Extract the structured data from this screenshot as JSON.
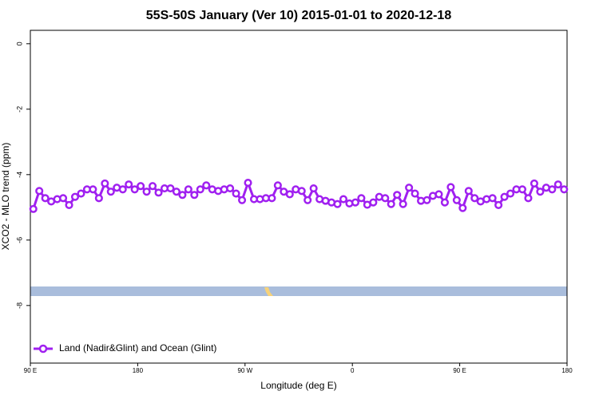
{
  "chart_data": {
    "type": "line",
    "title": "55S-50S January (Ver 10)   2015-01-01 to 2020-12-18",
    "x_label": "Longitude (deg E)",
    "y_label": "XCO2 - MLO trend (ppm)",
    "xlim": [
      90,
      540
    ],
    "ylim": [
      -9.76,
      0.41
    ],
    "xticks": [
      {
        "value": 90,
        "label": "90 E"
      },
      {
        "value": 180,
        "label": "180"
      },
      {
        "value": 270,
        "label": "90 W"
      },
      {
        "value": 360,
        "label": "0"
      },
      {
        "value": 450,
        "label": "90 E"
      },
      {
        "value": 540,
        "label": "180"
      }
    ],
    "yticks": [
      0,
      -2,
      -4,
      -6,
      -8
    ],
    "legend": "bottom-left",
    "x": [
      92.5,
      97.5,
      102.5,
      107.5,
      112.5,
      117.5,
      122.5,
      127.5,
      132.5,
      137.5,
      142.5,
      147.5,
      152.5,
      157.5,
      162.5,
      167.5,
      172.5,
      177.5,
      182.5,
      187.5,
      192.5,
      197.5,
      202.5,
      207.5,
      212.5,
      217.5,
      222.5,
      227.5,
      232.5,
      237.5,
      242.5,
      247.5,
      252.5,
      257.5,
      262.5,
      267.5,
      272.5,
      277.5,
      282.5,
      287.5,
      292.5,
      297.5,
      302.5,
      307.5,
      312.5,
      317.5,
      322.5,
      327.5,
      332.5,
      337.5,
      342.5,
      347.5,
      352.5,
      357.5,
      362.5,
      367.5,
      372.5,
      377.5,
      382.5,
      387.5,
      392.5,
      397.5,
      402.5,
      407.5,
      412.5,
      417.5,
      422.5,
      427.5,
      432.5,
      437.5,
      442.5,
      447.5,
      452.5,
      457.5,
      462.5,
      467.5,
      472.5,
      477.5,
      482.5,
      487.5,
      492.5,
      497.5,
      502.5,
      507.5,
      512.5,
      517.5,
      522.5,
      527.5,
      532.5,
      537.5
    ],
    "series": [
      {
        "name": "Land (Nadir&Glint) and Ocean (Glint)",
        "color": "#a020f0",
        "values": [
          -5.05,
          -4.5,
          -4.72,
          -4.82,
          -4.75,
          -4.72,
          -4.93,
          -4.68,
          -4.58,
          -4.45,
          -4.45,
          -4.72,
          -4.27,
          -4.52,
          -4.4,
          -4.45,
          -4.3,
          -4.45,
          -4.35,
          -4.52,
          -4.35,
          -4.55,
          -4.42,
          -4.42,
          -4.52,
          -4.62,
          -4.45,
          -4.62,
          -4.45,
          -4.33,
          -4.45,
          -4.5,
          -4.45,
          -4.42,
          -4.58,
          -4.78,
          -4.25,
          -4.75,
          -4.75,
          -4.72,
          -4.72,
          -4.33,
          -4.52,
          -4.6,
          -4.45,
          -4.5,
          -4.78,
          -4.42,
          -4.75,
          -4.8,
          -4.85,
          -4.9,
          -4.75,
          -4.88,
          -4.85,
          -4.72,
          -4.92,
          -4.85,
          -4.68,
          -4.72,
          -4.9,
          -4.62,
          -4.9,
          -4.4,
          -4.58,
          -4.8,
          -4.78,
          -4.65,
          -4.6,
          -4.85,
          -4.38,
          -4.78,
          -5.02,
          -4.5,
          -4.72,
          -4.82,
          -4.75,
          -4.72,
          -4.93,
          -4.68,
          -4.58,
          -4.45,
          -4.45,
          -4.72,
          -4.27,
          -4.52,
          -4.4,
          -4.45,
          -4.3,
          -4.45
        ]
      }
    ]
  }
}
